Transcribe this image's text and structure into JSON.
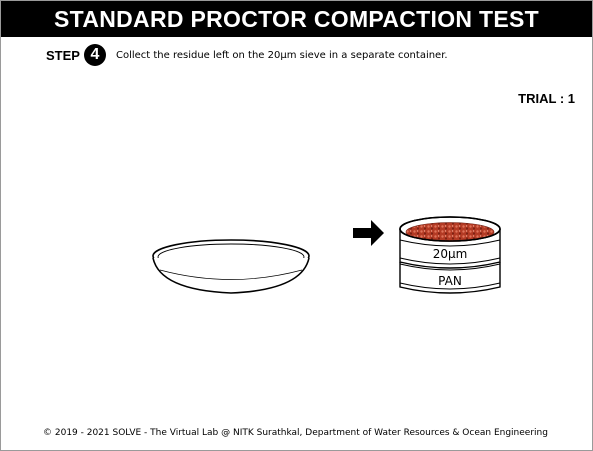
{
  "header": {
    "title": "STANDARD PROCTOR COMPACTION TEST"
  },
  "step": {
    "label": "STEP",
    "number": "4",
    "instruction": "Collect the residue left on the 20µm sieve in a separate container."
  },
  "trial": {
    "label": "TRIAL : 1"
  },
  "apparatus": {
    "sieve_label": "20µm",
    "pan_label": "PAN",
    "residue_color": "#b83a22"
  },
  "footer": {
    "text": "© 2019 - 2021 SOLVE - The Virtual Lab @ NITK Surathkal, Department of Water Resources & Ocean Engineering"
  }
}
